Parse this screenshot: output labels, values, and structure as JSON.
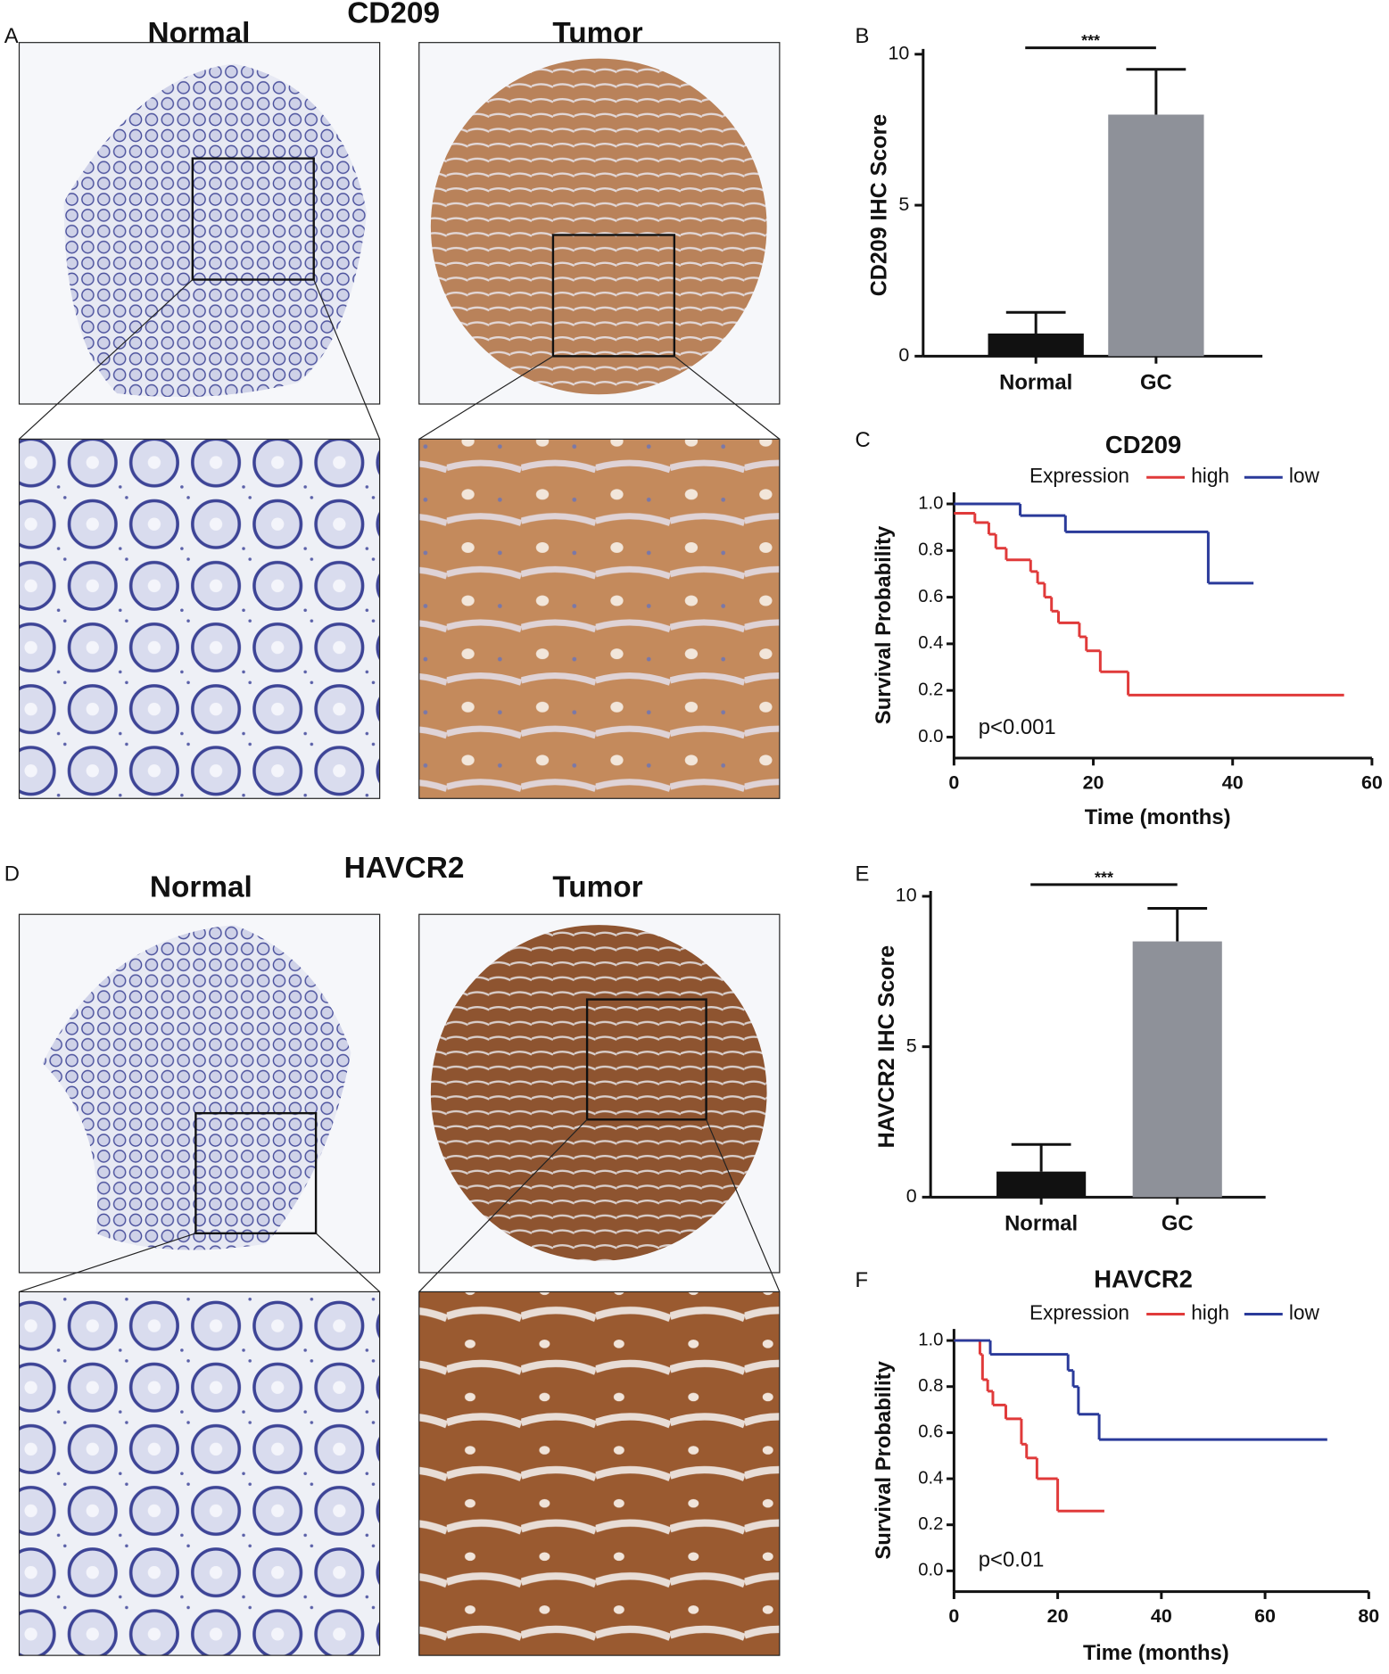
{
  "figure": {
    "panel_labels": [
      "A",
      "B",
      "C",
      "D",
      "E",
      "F"
    ],
    "ihc": [
      {
        "title": "CD209",
        "normal": "Normal",
        "tumor": "Tumor"
      },
      {
        "title": "HAVCR2",
        "normal": "Normal",
        "tumor": "Tumor"
      }
    ]
  },
  "chart_data": [
    {
      "type": "bar",
      "ylabel": "CD209 IHC Score",
      "categories": [
        "Normal",
        "GC"
      ],
      "values": [
        0.75,
        8
      ],
      "errors": [
        0.7,
        1.5
      ],
      "colors": [
        "#111111",
        "#8e9199"
      ],
      "ylim": [
        0,
        10
      ],
      "yticks": [
        0,
        5,
        10
      ],
      "annotation": "***"
    },
    {
      "type": "km",
      "title": "CD209",
      "legend_title": "Expression",
      "xlabel": "Time (months)",
      "ylabel": "Survival Probability",
      "annotation": "p<0.001",
      "series": [
        {
          "name": "high",
          "color": "#e03a3a",
          "x": [
            0,
            3,
            5,
            6,
            7.5,
            11,
            12,
            13,
            14,
            15,
            18,
            19,
            21,
            25,
            56
          ],
          "values": [
            0.96,
            0.92,
            0.87,
            0.81,
            0.76,
            0.71,
            0.66,
            0.6,
            0.54,
            0.49,
            0.43,
            0.37,
            0.28,
            0.18,
            0.18
          ]
        },
        {
          "name": "low",
          "color": "#2a3a9a",
          "x": [
            0,
            9.5,
            16,
            36.5,
            43
          ],
          "values": [
            1,
            0.95,
            0.88,
            0.66,
            0.66
          ]
        }
      ],
      "xlim": [
        0,
        60
      ],
      "xticks": [
        0,
        20,
        40,
        60
      ],
      "ylim": [
        -0.09,
        1.05
      ],
      "yticks": [
        {
          "value": 0,
          "label": "0.0"
        },
        0.2,
        0.4,
        0.6,
        0.8,
        {
          "value": 1,
          "label": "1.0"
        }
      ]
    },
    {
      "type": "bar",
      "ylabel": "HAVCR2 IHC Score",
      "categories": [
        "Normal",
        "GC"
      ],
      "values": [
        0.85,
        8.5
      ],
      "errors": [
        0.9,
        1.1
      ],
      "colors": [
        "#111111",
        "#8e9199"
      ],
      "ylim": [
        0,
        10
      ],
      "yticks": [
        0,
        5,
        10
      ],
      "annotation": "***"
    },
    {
      "type": "km",
      "title": "HAVCR2",
      "legend_title": "Expression",
      "xlabel": "Time (months)",
      "ylabel": "Survival Probability",
      "annotation": "p<0.01",
      "series": [
        {
          "name": "high",
          "color": "#e03a3a",
          "x": [
            0,
            5,
            5.5,
            6.5,
            7.5,
            10,
            13,
            14,
            16,
            20,
            29
          ],
          "values": [
            1,
            0.94,
            0.83,
            0.78,
            0.72,
            0.66,
            0.55,
            0.49,
            0.4,
            0.26,
            0.26
          ]
        },
        {
          "name": "low",
          "color": "#2a3a9a",
          "x": [
            0,
            7,
            22,
            23,
            24,
            28,
            72
          ],
          "values": [
            1,
            0.94,
            0.87,
            0.8,
            0.68,
            0.57,
            0.57
          ]
        }
      ],
      "xlim": [
        0,
        80
      ],
      "xticks": [
        0,
        20,
        40,
        60,
        80
      ],
      "ylim": [
        -0.09,
        1.05
      ],
      "yticks": [
        {
          "value": 0,
          "label": "0.0"
        },
        0.2,
        0.4,
        0.6,
        0.8,
        {
          "value": 1,
          "label": "1.0"
        }
      ]
    }
  ]
}
